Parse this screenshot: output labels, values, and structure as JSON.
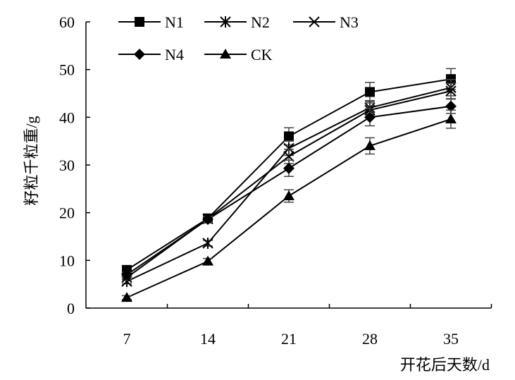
{
  "chart_data": {
    "type": "line",
    "title": "",
    "xlabel": "开花后天数/d",
    "ylabel": "籽粒千粒重/g",
    "x": [
      7,
      14,
      21,
      28,
      35
    ],
    "xticks": [
      "7",
      "14",
      "21",
      "28",
      "35"
    ],
    "yticks": [
      "0",
      "10",
      "20",
      "30",
      "40",
      "50",
      "60"
    ],
    "ylim": [
      0,
      60
    ],
    "grid": false,
    "legend_position": "top-left",
    "series": [
      {
        "name": "N1",
        "marker": "square",
        "values": [
          8.0,
          18.8,
          36.0,
          45.3,
          48.0
        ],
        "err": [
          0.8,
          0.7,
          1.8,
          2.0,
          2.2
        ]
      },
      {
        "name": "N2",
        "marker": "asterisk",
        "values": [
          5.6,
          13.6,
          33.5,
          42.0,
          46.2
        ],
        "err": [
          0.5,
          0.6,
          1.5,
          1.5,
          1.7
        ]
      },
      {
        "name": "N3",
        "marker": "cross",
        "values": [
          6.4,
          18.7,
          31.8,
          41.5,
          45.5
        ],
        "err": [
          0.5,
          0.6,
          1.5,
          1.5,
          1.6
        ]
      },
      {
        "name": "N4",
        "marker": "diamond",
        "values": [
          7.0,
          18.6,
          29.3,
          40.0,
          42.3
        ],
        "err": [
          0.5,
          0.6,
          1.7,
          1.8,
          1.5
        ]
      },
      {
        "name": "CK",
        "marker": "triangle",
        "values": [
          2.2,
          9.8,
          23.5,
          34.0,
          39.6
        ],
        "err": [
          0.4,
          0.6,
          1.3,
          1.7,
          1.9
        ]
      }
    ]
  }
}
